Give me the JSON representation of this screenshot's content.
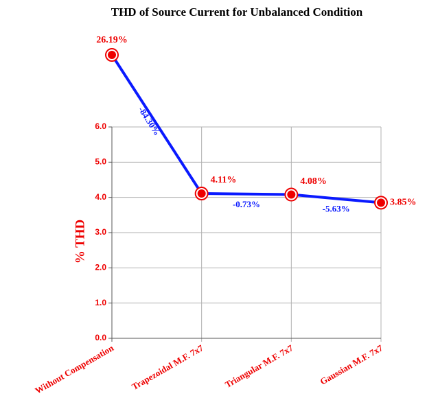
{
  "chart_data": {
    "type": "line",
    "title": "THD of Source Current for Unbalanced Condition",
    "ylabel": "% THD",
    "categories": [
      "Without Compensation",
      "Trapezoidal M.F. 7x7",
      "Triangular M.F. 7x7",
      "Gaussian M.F. 7x7"
    ],
    "values": [
      26.19,
      4.11,
      4.08,
      3.85
    ],
    "value_labels": [
      "26.19%",
      "4.11%",
      "4.08%",
      "3.85%"
    ],
    "color": "#0a1aff",
    "marker_color": "#ee0000",
    "annotations": [
      "-84.30%",
      "-0.73%",
      "-5.63%"
    ],
    "ylim": [
      0,
      6
    ],
    "yticks": [
      {
        "value": 0,
        "label": "0.0"
      },
      {
        "value": 1,
        "label": "1.0"
      },
      {
        "value": 2,
        "label": "2.0"
      },
      {
        "value": 3,
        "label": "3.0"
      },
      {
        "value": 4,
        "label": "4.0"
      },
      {
        "value": 5,
        "label": "5.0"
      },
      {
        "value": 6,
        "label": "6.0"
      }
    ],
    "grid": true
  }
}
